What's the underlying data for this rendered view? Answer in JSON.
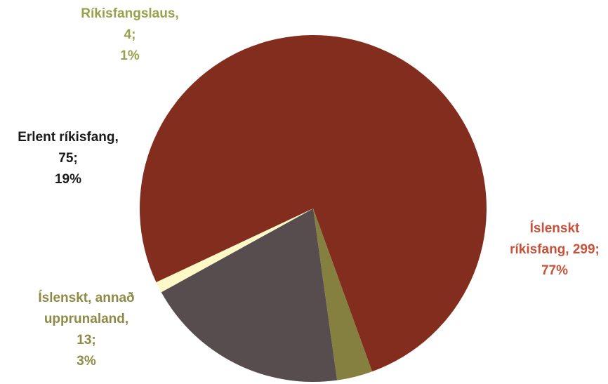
{
  "chart_data": {
    "type": "pie",
    "title": "",
    "slices": [
      {
        "label_lines": [
          "Íslenskt",
          "ríkisfang, 299;",
          "77%"
        ],
        "value": 299,
        "percent": "77%",
        "color": "#832D1F",
        "label_color": "#C9513A"
      },
      {
        "label_lines": [
          "Íslenskt, annað",
          "upprunaland,",
          "13;",
          "3%"
        ],
        "value": 13,
        "percent": "3%",
        "color": "#868040",
        "label_color": "#8E8A45"
      },
      {
        "label_lines": [
          "Erlent ríkisfang,",
          "75;",
          "19%"
        ],
        "value": 75,
        "percent": "19%",
        "color": "#574D4F",
        "label_color": "#1A1A1A"
      },
      {
        "label_lines": [
          "Ríkisfangslaus,",
          "4;",
          "1%"
        ],
        "value": 4,
        "percent": "1%",
        "color": "#FEF9C6",
        "label_color": "#98A24A"
      }
    ]
  }
}
